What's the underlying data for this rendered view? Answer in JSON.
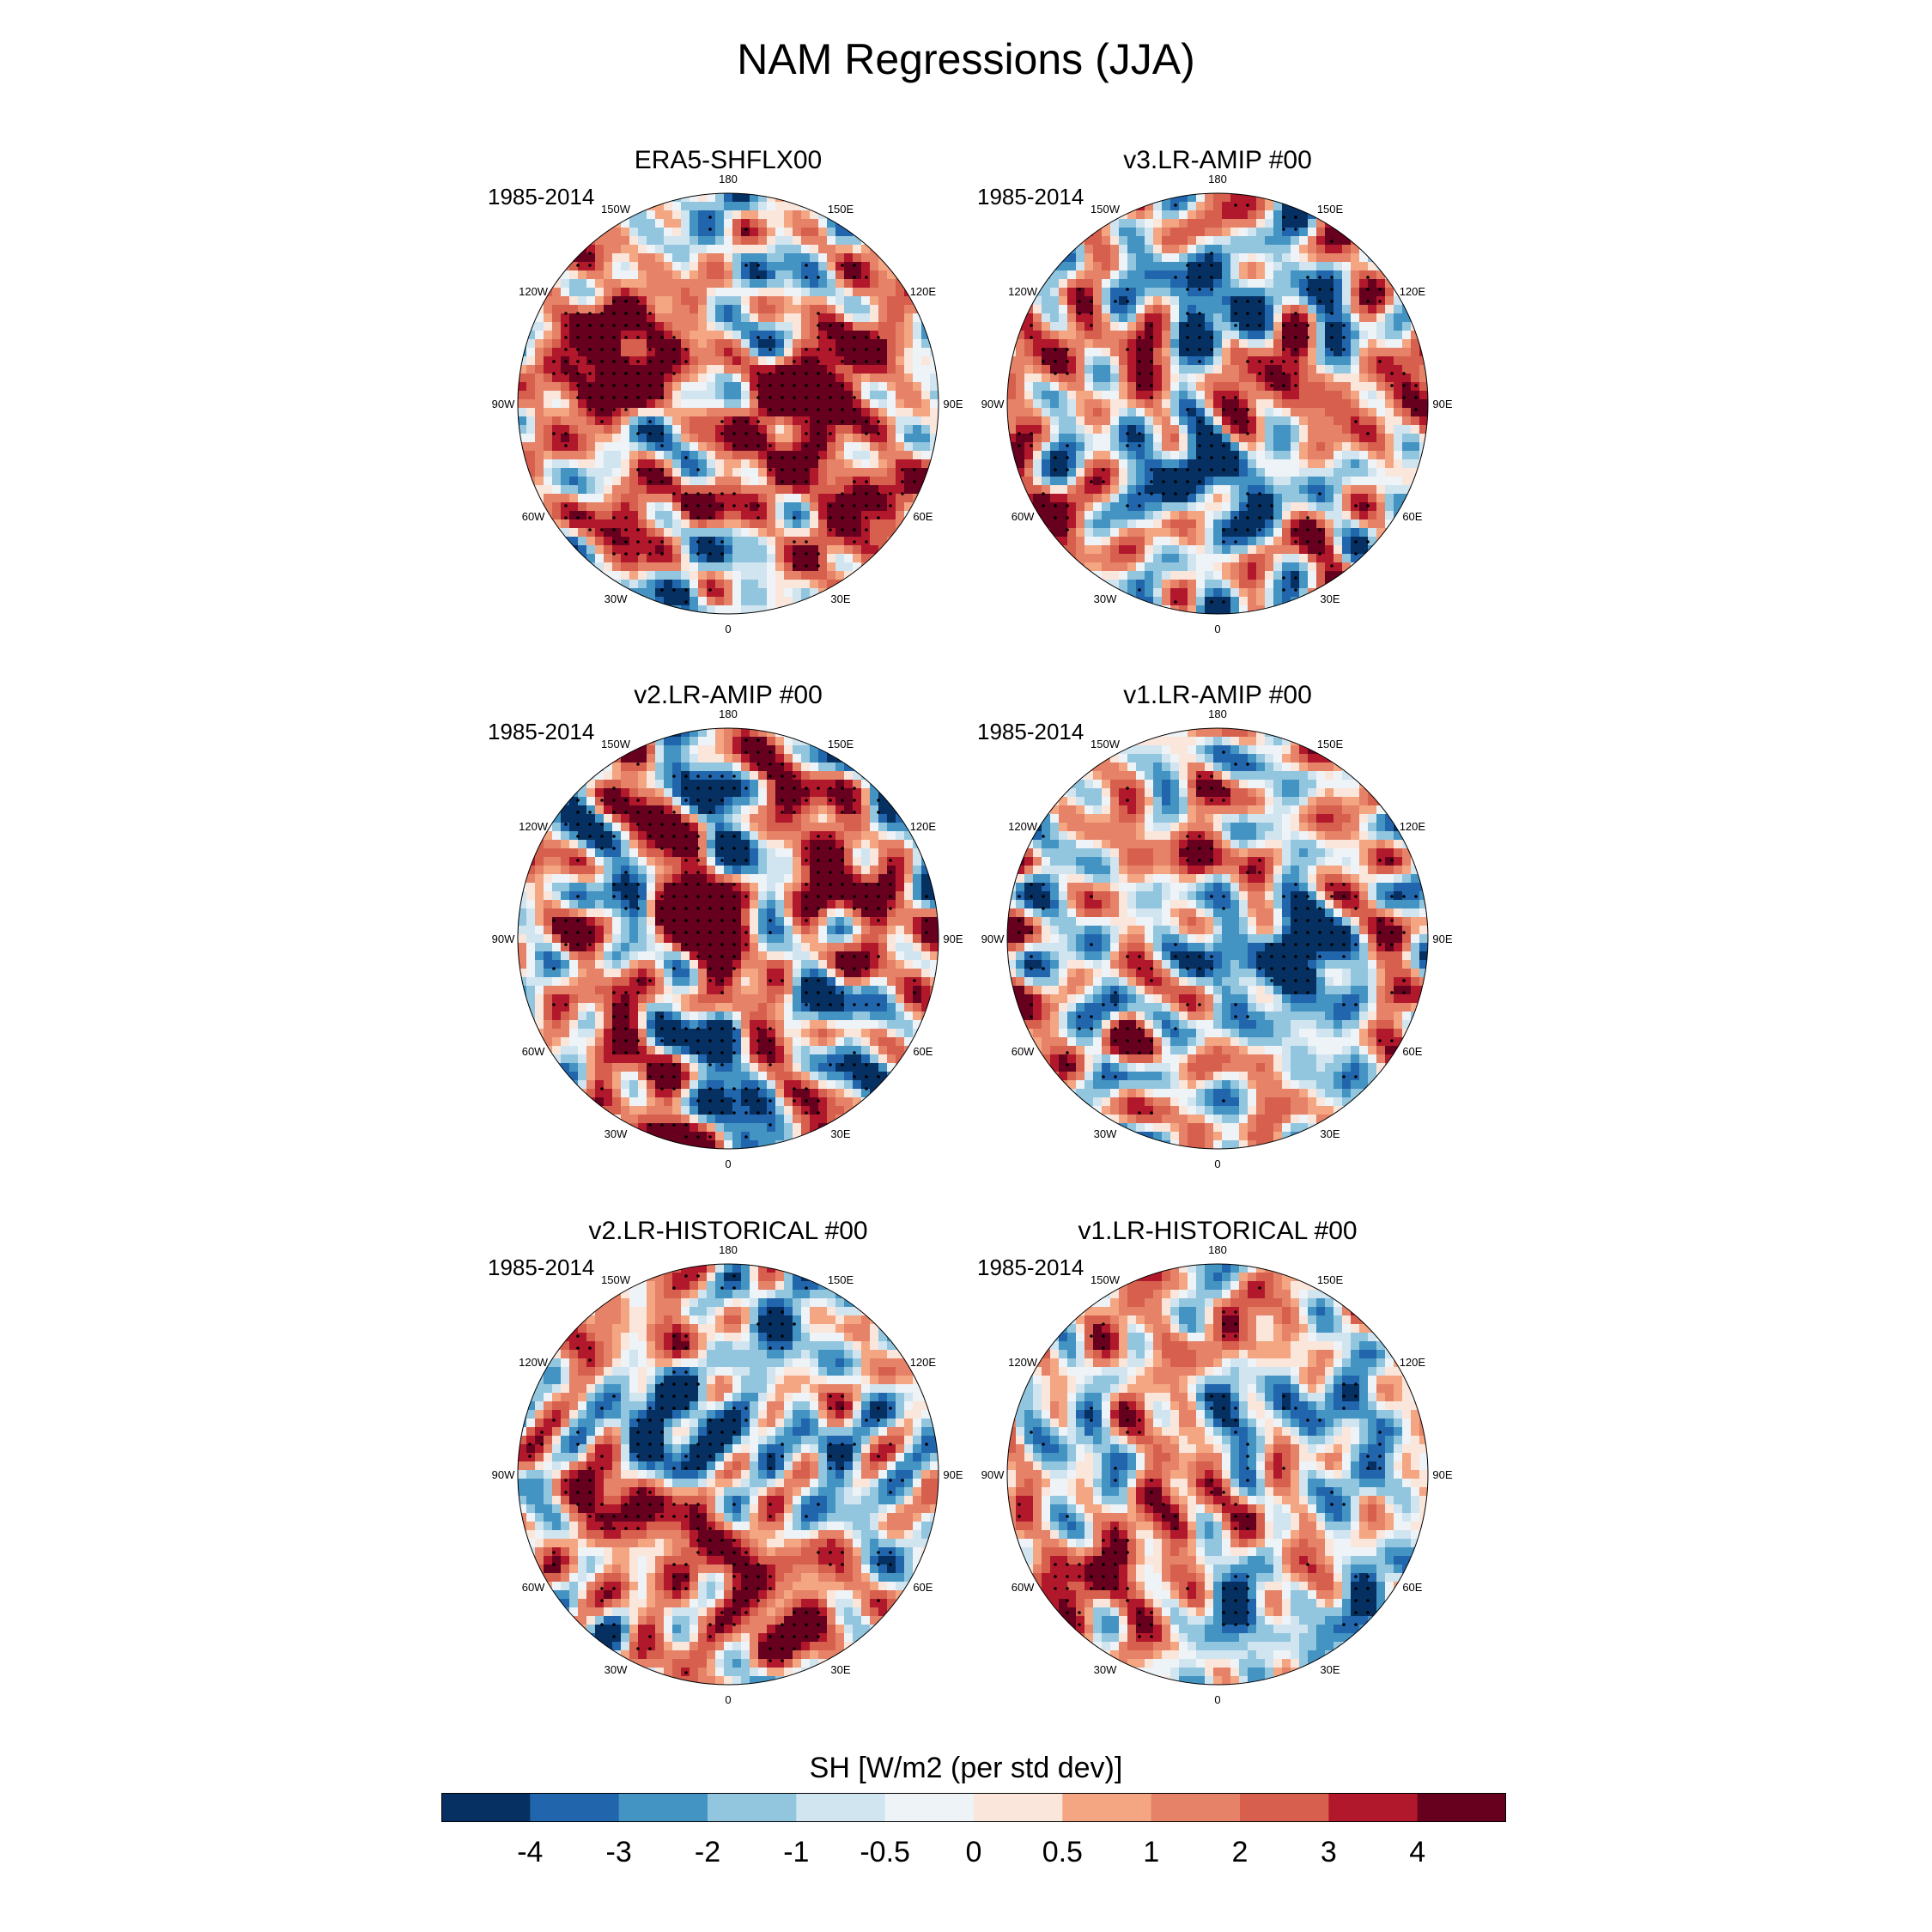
{
  "title": "NAM Regressions (JJA)",
  "panels": [
    {
      "id": "era5",
      "title": "ERA5-SHFLX00",
      "period": "1985-2014",
      "seed": 11,
      "bias": 0.45
    },
    {
      "id": "v3amip",
      "title": "v3.LR-AMIP  #00",
      "period": "1985-2014",
      "seed": 23,
      "bias": 0.1
    },
    {
      "id": "v2amip",
      "title": "v2.LR-AMIP  #00",
      "period": "1985-2014",
      "seed": 37,
      "bias": 0.15
    },
    {
      "id": "v1amip",
      "title": "v1.LR-AMIP  #00",
      "period": "1985-2014",
      "seed": 41,
      "bias": 0.05
    },
    {
      "id": "v2hist",
      "title": "v2.LR-HISTORICAL  #00",
      "period": "1985-2014",
      "seed": 53,
      "bias": 0.1
    },
    {
      "id": "v1hist",
      "title": "v1.LR-HISTORICAL  #00",
      "period": "1985-2014",
      "seed": 67,
      "bias": 0.0
    }
  ],
  "longitude_labels": [
    "180",
    "150E",
    "120E",
    "90E",
    "60E",
    "30E",
    "0",
    "30W",
    "60W",
    "90W",
    "120W",
    "150W"
  ],
  "colorbar": {
    "title": "SH [W/m2 (per std dev)]",
    "ticks": [
      "-4",
      "-3",
      "-2",
      "-1",
      "-0.5",
      "0",
      "0.5",
      "1",
      "2",
      "3",
      "4"
    ],
    "colors": [
      "#053061",
      "#2166ac",
      "#4393c3",
      "#92c5de",
      "#d1e5f0",
      "#eef3f7",
      "#fbe6dc",
      "#f4a582",
      "#e58267",
      "#d6604d",
      "#b2182b",
      "#67001f"
    ]
  }
}
